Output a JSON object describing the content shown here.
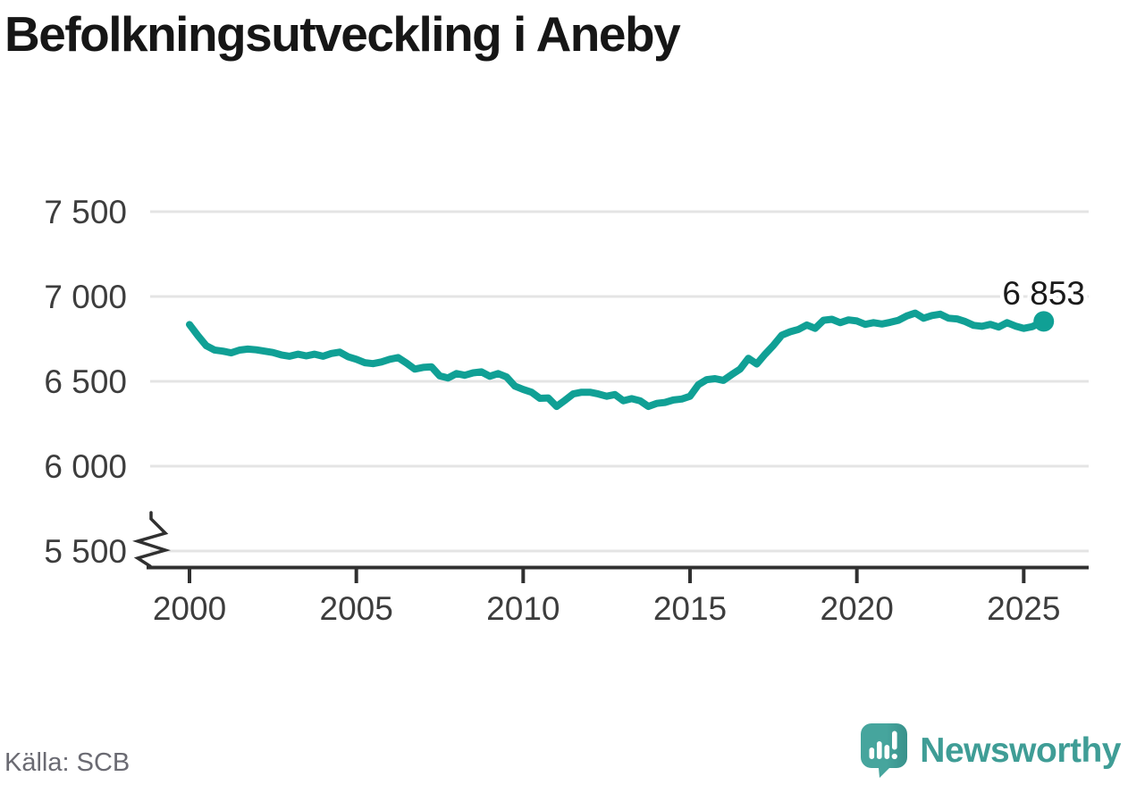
{
  "title": "Befolkningsutveckling i Aneby",
  "source": {
    "label": "Källa: SCB"
  },
  "branding": {
    "name": "Newsworthy",
    "icon": "newsworthy-speech-bubble-bar-chart-icon"
  },
  "colors": {
    "line": "#10a095",
    "grid": "#e4e4e4",
    "axis": "#303030",
    "tick_text": "#3d3d3d",
    "title": "#161616",
    "annotation": "#1a1a1a",
    "source_text": "#6a6a72",
    "logo_teal": "#46a59d",
    "logo_teal_dark": "#38918b",
    "logo_text": "#3f9d96"
  },
  "chart_data": {
    "type": "line",
    "title": "Befolkningsutveckling i Aneby",
    "xlabel": "",
    "ylabel": "",
    "grid": "horizontal",
    "legend": "none",
    "axis_break": true,
    "ylim_display": [
      5500,
      7500
    ],
    "xlim": [
      2000,
      2025.6
    ],
    "x_ticks": [
      {
        "value": 2000,
        "label": "2000"
      },
      {
        "value": 2005,
        "label": "2005"
      },
      {
        "value": 2010,
        "label": "2010"
      },
      {
        "value": 2015,
        "label": "2015"
      },
      {
        "value": 2020,
        "label": "2020"
      },
      {
        "value": 2025,
        "label": "2025"
      }
    ],
    "y_ticks": [
      {
        "value": 7500,
        "label": "7 500"
      },
      {
        "value": 7000,
        "label": "7 000"
      },
      {
        "value": 6500,
        "label": "6 500"
      },
      {
        "value": 6000,
        "label": "6 000"
      },
      {
        "value": 5500,
        "label": "5 500"
      }
    ],
    "latest": {
      "label": "6 853",
      "value": 6853,
      "year": 2025.6
    },
    "series": [
      {
        "name": "Befolkning i Aneby",
        "points": [
          [
            2000.0,
            6835
          ],
          [
            2000.25,
            6770
          ],
          [
            2000.5,
            6710
          ],
          [
            2000.75,
            6685
          ],
          [
            2001.0,
            6678
          ],
          [
            2001.25,
            6668
          ],
          [
            2001.5,
            6684
          ],
          [
            2001.75,
            6690
          ],
          [
            2002.0,
            6686
          ],
          [
            2002.25,
            6678
          ],
          [
            2002.5,
            6670
          ],
          [
            2002.75,
            6656
          ],
          [
            2003.0,
            6648
          ],
          [
            2003.25,
            6660
          ],
          [
            2003.5,
            6650
          ],
          [
            2003.75,
            6660
          ],
          [
            2004.0,
            6648
          ],
          [
            2004.25,
            6664
          ],
          [
            2004.5,
            6672
          ],
          [
            2004.75,
            6645
          ],
          [
            2005.0,
            6630
          ],
          [
            2005.25,
            6610
          ],
          [
            2005.5,
            6604
          ],
          [
            2005.75,
            6614
          ],
          [
            2006.0,
            6630
          ],
          [
            2006.25,
            6640
          ],
          [
            2006.5,
            6608
          ],
          [
            2006.75,
            6572
          ],
          [
            2007.0,
            6582
          ],
          [
            2007.25,
            6586
          ],
          [
            2007.5,
            6532
          ],
          [
            2007.75,
            6520
          ],
          [
            2008.0,
            6546
          ],
          [
            2008.25,
            6536
          ],
          [
            2008.5,
            6550
          ],
          [
            2008.75,
            6556
          ],
          [
            2009.0,
            6530
          ],
          [
            2009.25,
            6546
          ],
          [
            2009.5,
            6526
          ],
          [
            2009.75,
            6472
          ],
          [
            2010.0,
            6452
          ],
          [
            2010.25,
            6436
          ],
          [
            2010.5,
            6400
          ],
          [
            2010.75,
            6402
          ],
          [
            2011.0,
            6352
          ],
          [
            2011.25,
            6388
          ],
          [
            2011.5,
            6426
          ],
          [
            2011.75,
            6436
          ],
          [
            2012.0,
            6436
          ],
          [
            2012.25,
            6426
          ],
          [
            2012.5,
            6412
          ],
          [
            2012.75,
            6422
          ],
          [
            2013.0,
            6386
          ],
          [
            2013.25,
            6398
          ],
          [
            2013.5,
            6386
          ],
          [
            2013.75,
            6352
          ],
          [
            2014.0,
            6370
          ],
          [
            2014.25,
            6376
          ],
          [
            2014.5,
            6390
          ],
          [
            2014.75,
            6396
          ],
          [
            2015.0,
            6412
          ],
          [
            2015.25,
            6480
          ],
          [
            2015.5,
            6510
          ],
          [
            2015.75,
            6516
          ],
          [
            2016.0,
            6506
          ],
          [
            2016.25,
            6540
          ],
          [
            2016.5,
            6572
          ],
          [
            2016.75,
            6636
          ],
          [
            2017.0,
            6602
          ],
          [
            2017.25,
            6660
          ],
          [
            2017.5,
            6712
          ],
          [
            2017.75,
            6772
          ],
          [
            2018.0,
            6792
          ],
          [
            2018.25,
            6806
          ],
          [
            2018.5,
            6832
          ],
          [
            2018.75,
            6812
          ],
          [
            2019.0,
            6860
          ],
          [
            2019.25,
            6866
          ],
          [
            2019.5,
            6846
          ],
          [
            2019.75,
            6862
          ],
          [
            2020.0,
            6856
          ],
          [
            2020.25,
            6836
          ],
          [
            2020.5,
            6846
          ],
          [
            2020.75,
            6838
          ],
          [
            2021.0,
            6848
          ],
          [
            2021.25,
            6860
          ],
          [
            2021.5,
            6886
          ],
          [
            2021.75,
            6902
          ],
          [
            2022.0,
            6872
          ],
          [
            2022.25,
            6888
          ],
          [
            2022.5,
            6896
          ],
          [
            2022.75,
            6872
          ],
          [
            2023.0,
            6868
          ],
          [
            2023.25,
            6852
          ],
          [
            2023.5,
            6830
          ],
          [
            2023.75,
            6824
          ],
          [
            2024.0,
            6836
          ],
          [
            2024.25,
            6820
          ],
          [
            2024.5,
            6846
          ],
          [
            2024.75,
            6826
          ],
          [
            2025.0,
            6812
          ],
          [
            2025.25,
            6822
          ],
          [
            2025.6,
            6853
          ]
        ]
      }
    ]
  }
}
